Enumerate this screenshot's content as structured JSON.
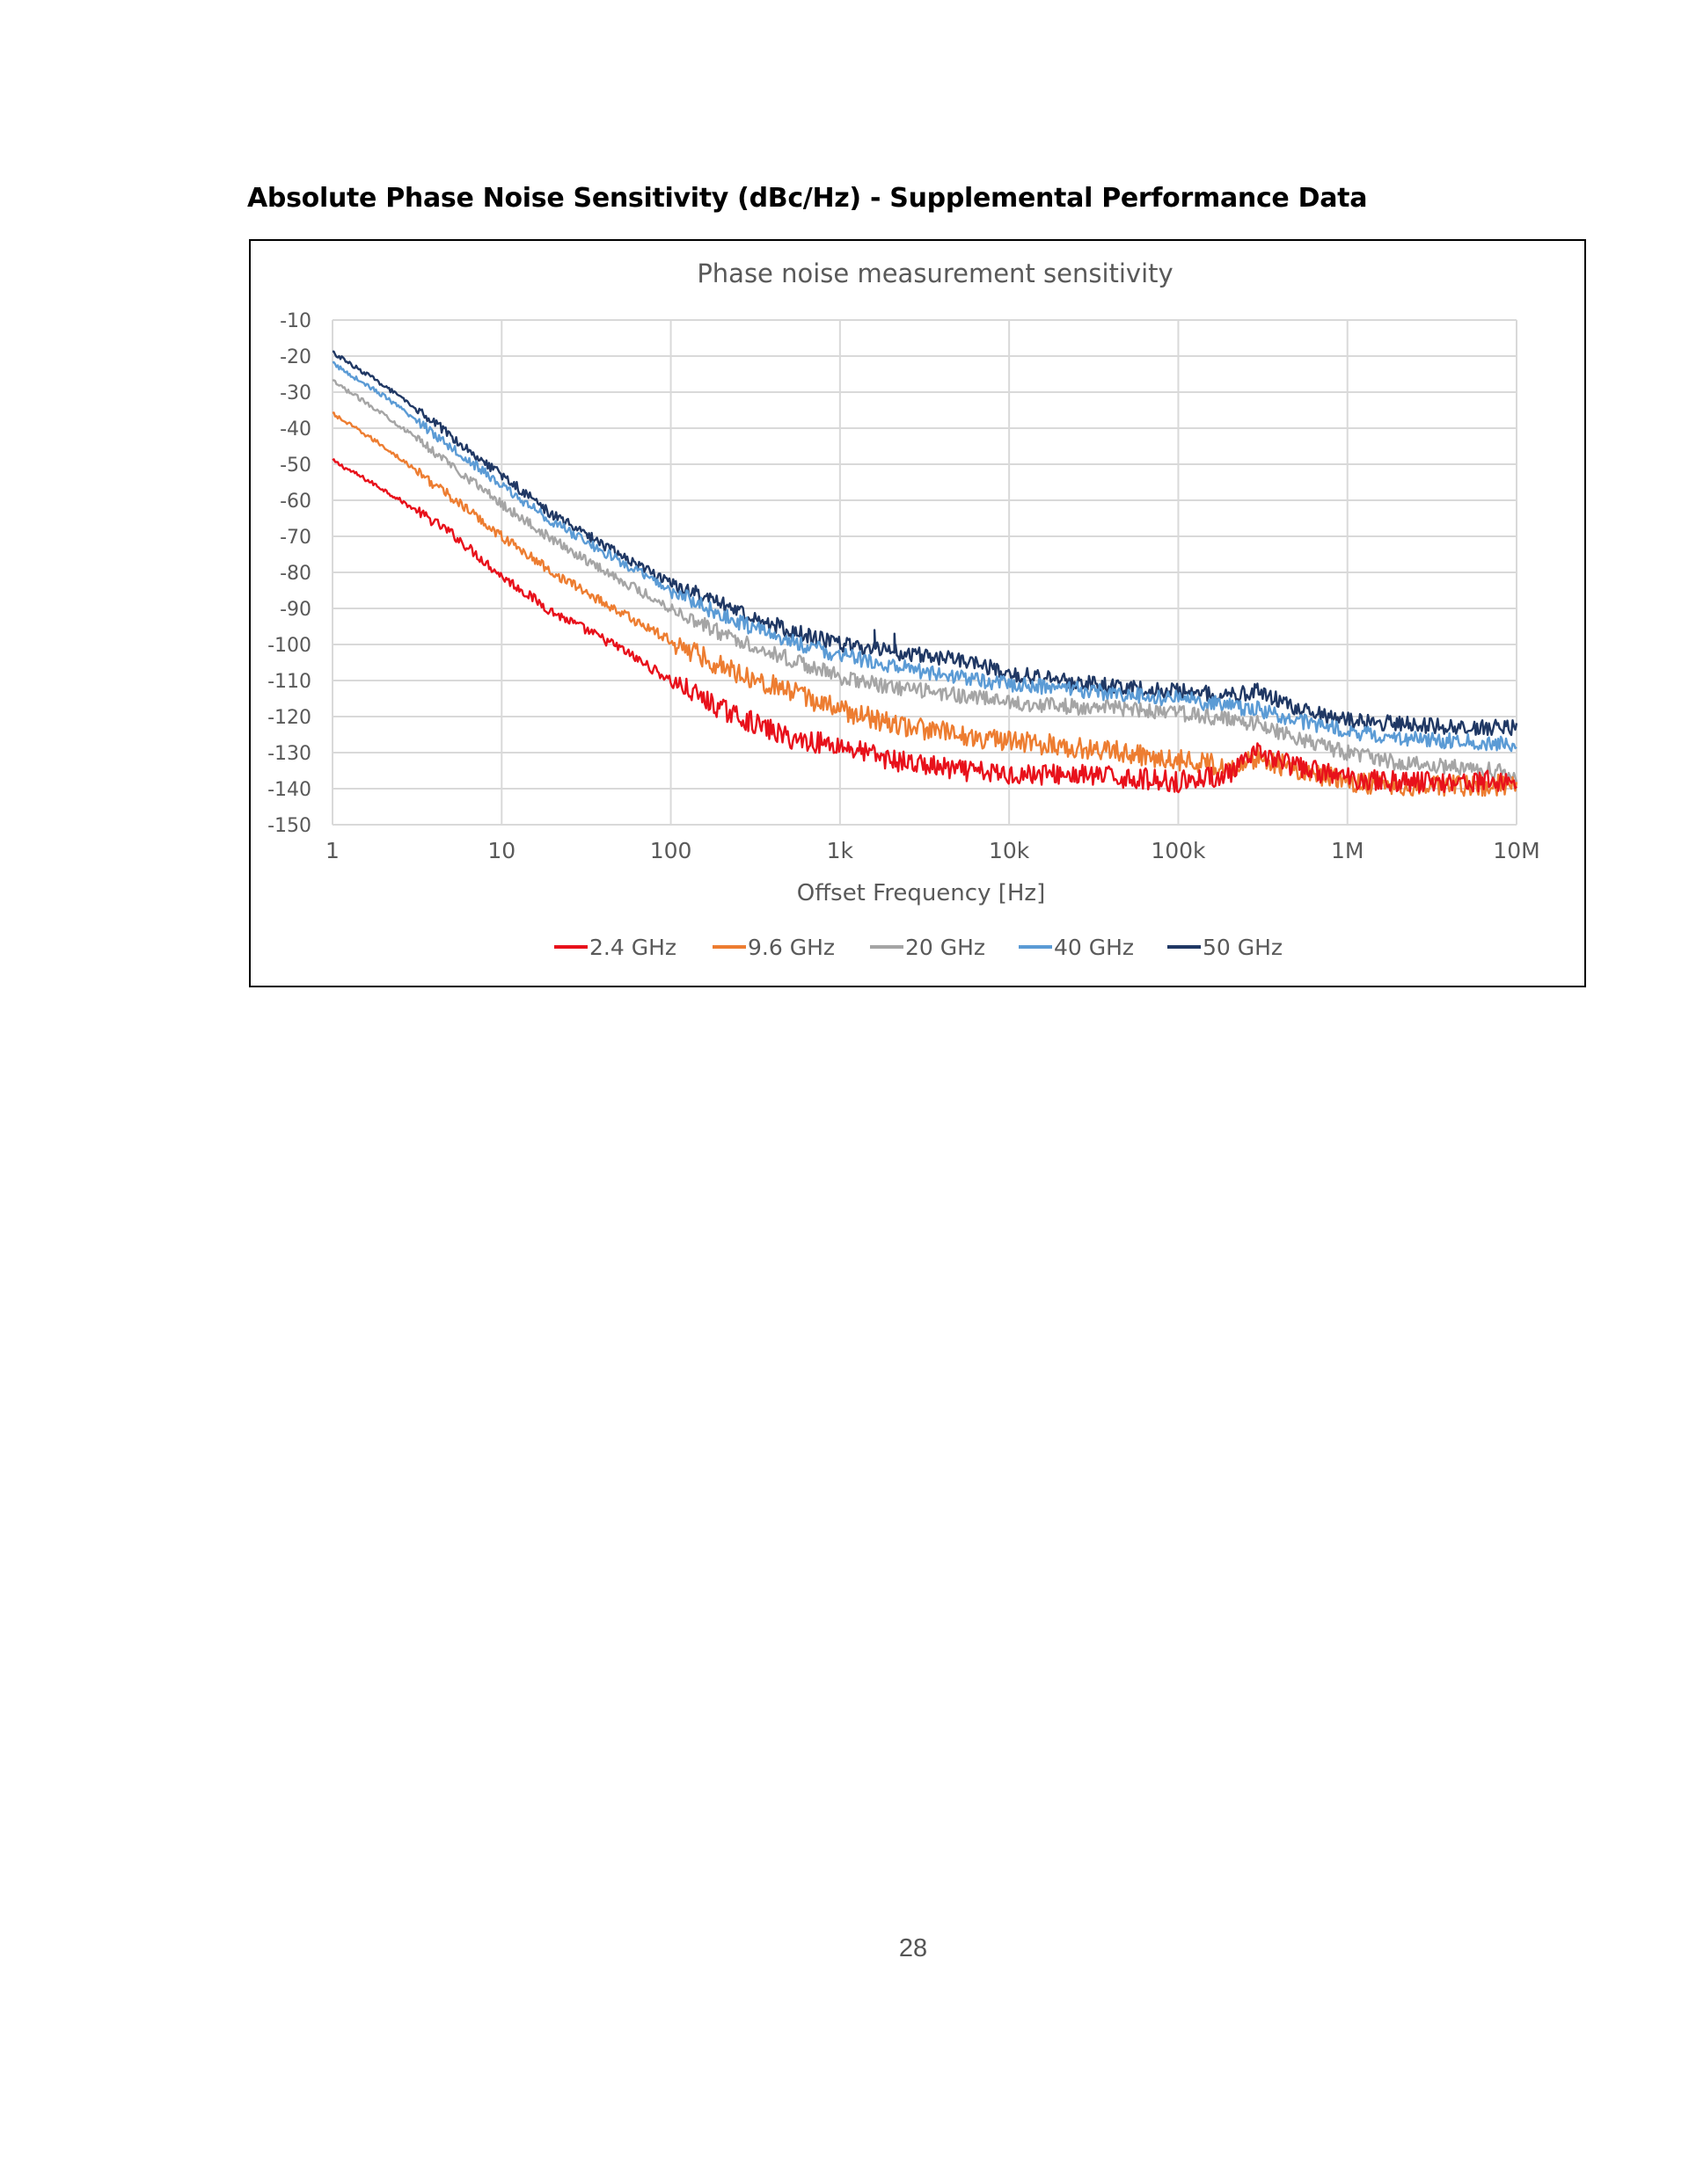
{
  "heading": "Absolute Phase Noise Sensitivity (dBc/Hz) - Supplemental Performance Data",
  "page_number": "28",
  "chart_data": {
    "type": "line",
    "title": "Phase noise measurement sensitivity",
    "xlabel": "Offset Frequency [Hz]",
    "ylabel": "",
    "x_scale": "log",
    "xlim": [
      1,
      10000000
    ],
    "ylim": [
      -150,
      -10
    ],
    "x_ticks": [
      {
        "value": 1,
        "label": "1"
      },
      {
        "value": 10,
        "label": "10"
      },
      {
        "value": 100,
        "label": "100"
      },
      {
        "value": 1000,
        "label": "1k"
      },
      {
        "value": 10000,
        "label": "10k"
      },
      {
        "value": 100000,
        "label": "100k"
      },
      {
        "value": 1000000,
        "label": "1M"
      },
      {
        "value": 10000000,
        "label": "10M"
      }
    ],
    "y_ticks": [
      {
        "value": -10,
        "label": "-10"
      },
      {
        "value": -20,
        "label": "-20"
      },
      {
        "value": -30,
        "label": "-30"
      },
      {
        "value": -40,
        "label": "-40"
      },
      {
        "value": -50,
        "label": "-50"
      },
      {
        "value": -60,
        "label": "-60"
      },
      {
        "value": -70,
        "label": "-70"
      },
      {
        "value": -80,
        "label": "-80"
      },
      {
        "value": -90,
        "label": "-90"
      },
      {
        "value": -100,
        "label": "-100"
      },
      {
        "value": -110,
        "label": "-110"
      },
      {
        "value": -120,
        "label": "-120"
      },
      {
        "value": -130,
        "label": "-130"
      },
      {
        "value": -140,
        "label": "-140"
      },
      {
        "value": -150,
        "label": "-150"
      }
    ],
    "grid": true,
    "legend_position": "bottom",
    "series": [
      {
        "name": "2.4 GHz",
        "color": "#e8111b",
        "x": [
          1,
          2,
          5,
          10,
          20,
          50,
          100,
          200,
          500,
          1000,
          2000,
          5000,
          10000,
          20000,
          50000,
          100000,
          200000,
          300000,
          500000,
          1000000,
          2000000,
          5000000,
          10000000
        ],
        "y": [
          -49,
          -57,
          -69,
          -81,
          -91,
          -101,
          -110,
          -118,
          -126,
          -128,
          -132,
          -135,
          -136,
          -136,
          -137,
          -138,
          -136,
          -130,
          -134,
          -137,
          -138,
          -138,
          -138
        ]
      },
      {
        "name": "9.6 GHz",
        "color": "#ed7d31",
        "x": [
          1,
          2,
          5,
          10,
          20,
          50,
          100,
          200,
          500,
          1000,
          2000,
          5000,
          10000,
          20000,
          50000,
          100000,
          200000,
          300000,
          500000,
          1000000,
          2000000,
          5000000,
          10000000
        ],
        "y": [
          -36,
          -45,
          -59,
          -70,
          -80,
          -91,
          -99,
          -106,
          -113,
          -118,
          -122,
          -125,
          -127,
          -128,
          -130,
          -132,
          -134,
          -131,
          -135,
          -138,
          -139,
          -139,
          -139
        ]
      },
      {
        "name": "20 GHz",
        "color": "#a5a5a5",
        "x": [
          1,
          2,
          5,
          10,
          20,
          50,
          100,
          200,
          500,
          1000,
          2000,
          5000,
          10000,
          20000,
          50000,
          100000,
          200000,
          300000,
          500000,
          1000000,
          2000000,
          5000000,
          10000000
        ],
        "y": [
          -27,
          -36,
          -50,
          -61,
          -71,
          -82,
          -90,
          -97,
          -104,
          -109,
          -112,
          -114,
          -116,
          -117,
          -118,
          -119,
          -121,
          -122,
          -126,
          -130,
          -133,
          -134,
          -136
        ]
      },
      {
        "name": "40 GHz",
        "color": "#5b9bd5",
        "x": [
          1,
          2,
          5,
          10,
          20,
          50,
          100,
          200,
          500,
          1000,
          2000,
          5000,
          10000,
          20000,
          50000,
          100000,
          200000,
          300000,
          500000,
          1000000,
          2000000,
          5000000,
          10000000
        ],
        "y": [
          -22,
          -31,
          -45,
          -56,
          -66,
          -77,
          -85,
          -92,
          -99,
          -103,
          -106,
          -109,
          -111,
          -112,
          -114,
          -115,
          -117,
          -118,
          -121,
          -124,
          -126,
          -127,
          -128
        ]
      },
      {
        "name": "50 GHz",
        "color": "#203864",
        "x": [
          1,
          2,
          5,
          10,
          20,
          50,
          100,
          200,
          500,
          1000,
          1500,
          2000,
          5000,
          10000,
          20000,
          50000,
          100000,
          200000,
          300000,
          500000,
          1000000,
          2000000,
          5000000,
          10000000
        ],
        "y": [
          -19,
          -28,
          -42,
          -53,
          -64,
          -75,
          -83,
          -89,
          -96,
          -100,
          -101,
          -102,
          -104,
          -108,
          -110,
          -112,
          -113,
          -114,
          -113,
          -118,
          -121,
          -122,
          -123,
          -123
        ],
        "spikes": [
          {
            "x": 1600,
            "y": -96
          },
          {
            "x": 2100,
            "y": -97
          }
        ]
      }
    ]
  }
}
